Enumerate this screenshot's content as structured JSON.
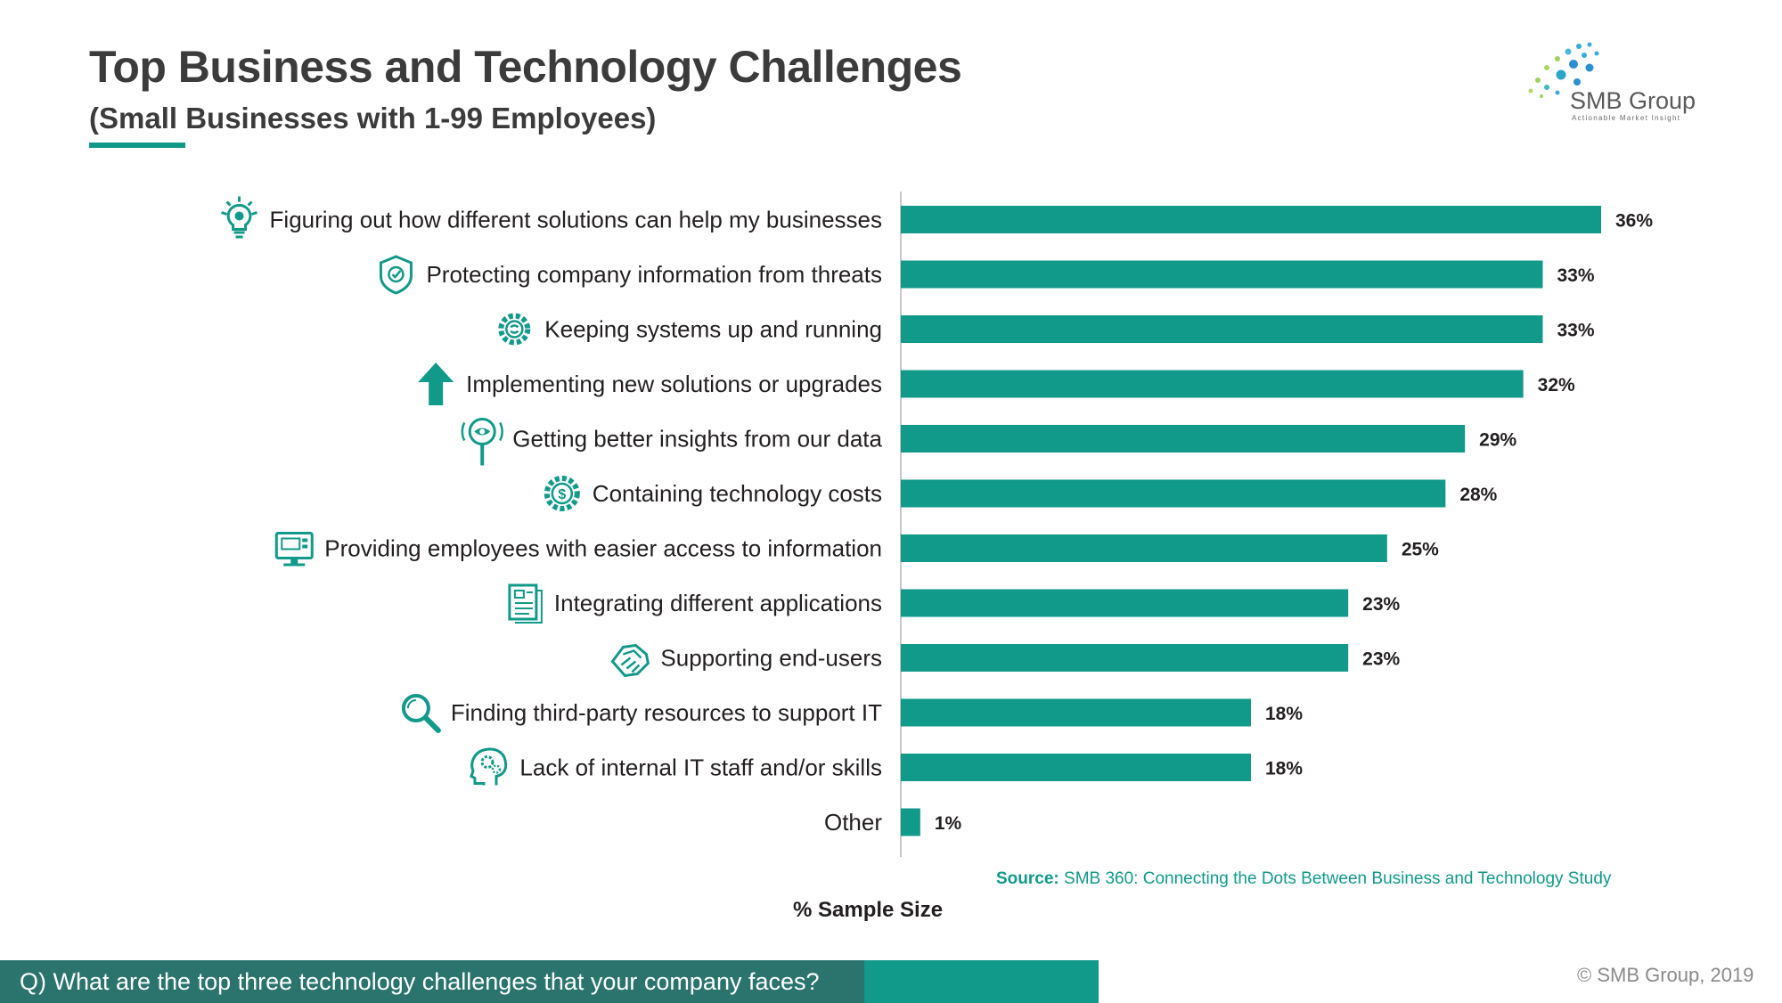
{
  "header": {
    "title": "Top Business and Technology Challenges",
    "subtitle": "(Small Businesses with 1-99 Employees)"
  },
  "logo": {
    "name": "SMB Group",
    "tagline": "Actionable Market Insight"
  },
  "chart_data": {
    "type": "bar",
    "orientation": "horizontal",
    "categories": [
      "Figuring out how different solutions can help my businesses",
      "Protecting company information from threats",
      "Keeping systems up and running",
      "Implementing new solutions or upgrades",
      "Getting better insights from our data",
      "Containing technology costs",
      "Providing employees with easier access to information",
      "Integrating different applications",
      "Supporting end-users",
      "Finding third-party resources to support IT",
      "Lack of internal IT staff and/or skills",
      "Other"
    ],
    "values": [
      36,
      33,
      33,
      32,
      29,
      28,
      25,
      23,
      23,
      18,
      18,
      1
    ],
    "value_labels": [
      "36%",
      "33%",
      "33%",
      "32%",
      "29%",
      "28%",
      "25%",
      "23%",
      "23%",
      "18%",
      "18%",
      "1%"
    ],
    "icons": [
      "lightbulb-gear-icon",
      "shield-check-icon",
      "gear-cycle-icon",
      "arrow-up-icon",
      "eye-magnifier-icon",
      "dollar-gear-icon",
      "computer-monitor-icon",
      "checklist-document-icon",
      "handshake-icon",
      "magnifier-icon",
      "head-gears-icon",
      ""
    ],
    "xlabel": "% Sample Size",
    "xlim": [
      0,
      36
    ],
    "grid": false,
    "legend": "none",
    "bar_color": "#11998a"
  },
  "source": {
    "label": "Source:",
    "text": "SMB 360: Connecting the Dots Between Business and Technology Study"
  },
  "footer": {
    "question": "Q) What are the top three technology challenges that your company faces?",
    "copyright": "© SMB Group, 2019"
  },
  "colors": {
    "accent": "#11998a",
    "footer_dark": "#2a746d"
  }
}
